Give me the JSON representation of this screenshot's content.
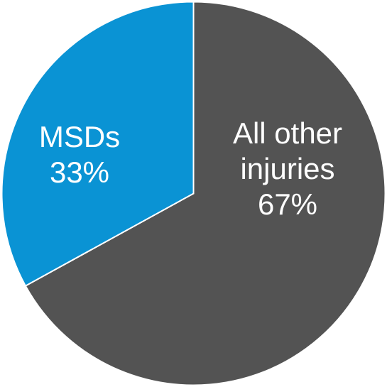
{
  "chart_data": {
    "type": "pie",
    "categories": [
      "All other injuries",
      "MSDs"
    ],
    "values": [
      67,
      33
    ],
    "value_labels": [
      "67%",
      "33%"
    ],
    "colors": [
      "#535353",
      "#0a93d4"
    ]
  }
}
